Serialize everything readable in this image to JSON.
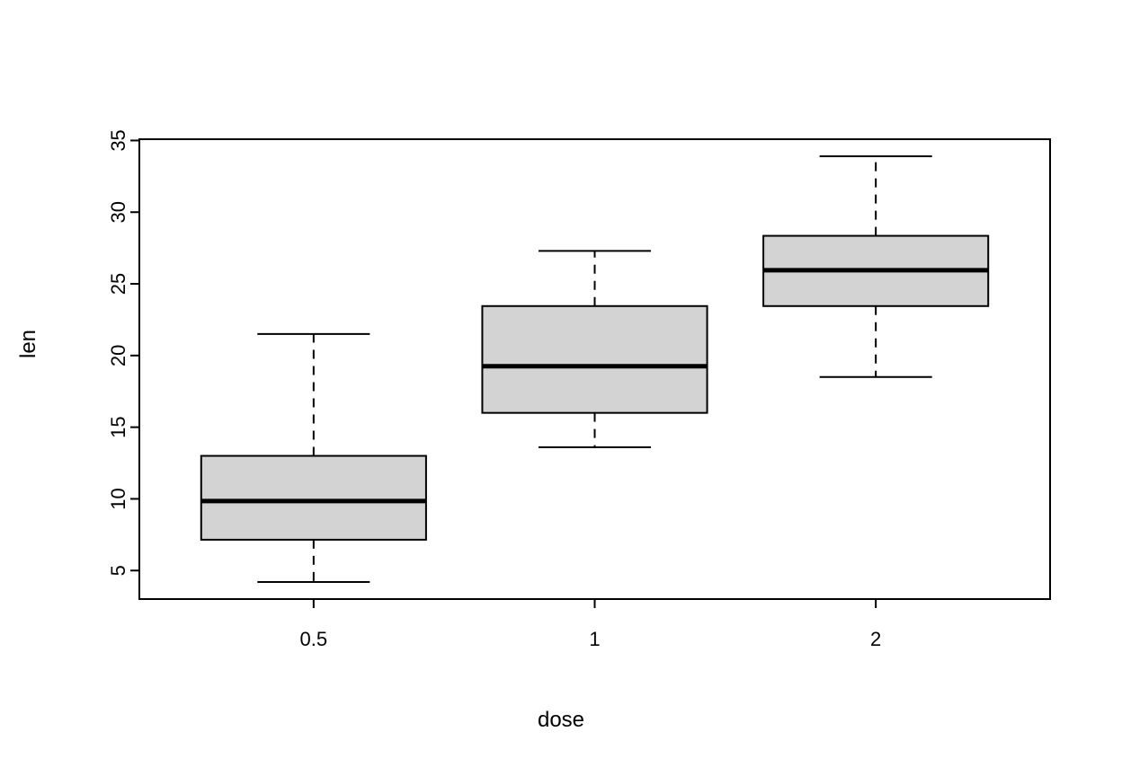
{
  "chart_data": {
    "type": "boxplot",
    "title": "",
    "xlabel": "dose",
    "ylabel": "len",
    "categories": [
      "0.5",
      "1",
      "2"
    ],
    "y_ticks": [
      5,
      10,
      15,
      20,
      25,
      30,
      35
    ],
    "ylim": [
      3.01,
      35.09
    ],
    "series": [
      {
        "category": "0.5",
        "min": 4.2,
        "q1": 7.15,
        "median": 9.85,
        "q3": 13.0,
        "max": 21.5
      },
      {
        "category": "1",
        "min": 13.6,
        "q1": 16.0,
        "median": 19.25,
        "q3": 23.45,
        "max": 27.3
      },
      {
        "category": "2",
        "min": 18.5,
        "q1": 23.45,
        "median": 25.95,
        "q3": 28.35,
        "max": 33.9
      }
    ],
    "box_fill": "#d3d3d3",
    "stroke": "#000000",
    "whisker_style": "dashed",
    "grid": false,
    "legend": false
  }
}
